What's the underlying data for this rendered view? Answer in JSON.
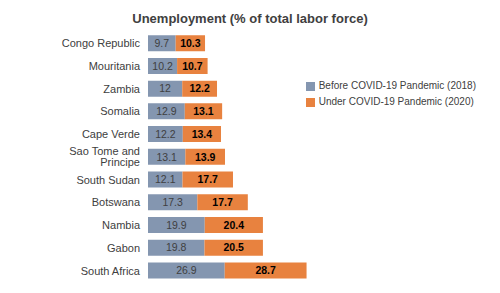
{
  "chart_data": {
    "type": "bar",
    "title": "Unemployment (% of total labor force)",
    "orientation": "horizontal",
    "stacked": true,
    "data_labels": true,
    "tick_labels": "y",
    "legend": "right",
    "xlim": [
      0,
      56
    ],
    "categories": [
      "Congo Republic",
      "Mouritania",
      "Zambia",
      "Somalia",
      "Cape Verde",
      "Sao Tome and Principe",
      "South Sudan",
      "Botswana",
      "Nambia",
      "Gabon",
      "South Africa"
    ],
    "series": [
      {
        "name": "Before COVID-19 Pandemic (2018)",
        "color": "#8496b0",
        "values": [
          9.7,
          10.2,
          12,
          12.9,
          12.2,
          13.1,
          12.1,
          17.3,
          19.9,
          19.8,
          26.9
        ]
      },
      {
        "name": "Under COVID-19 Pandemic (2020)",
        "color": "#e8823f",
        "values": [
          10.3,
          10.7,
          12.2,
          13.1,
          13.4,
          13.9,
          17.7,
          17.7,
          20.4,
          20.5,
          28.7
        ]
      }
    ]
  }
}
